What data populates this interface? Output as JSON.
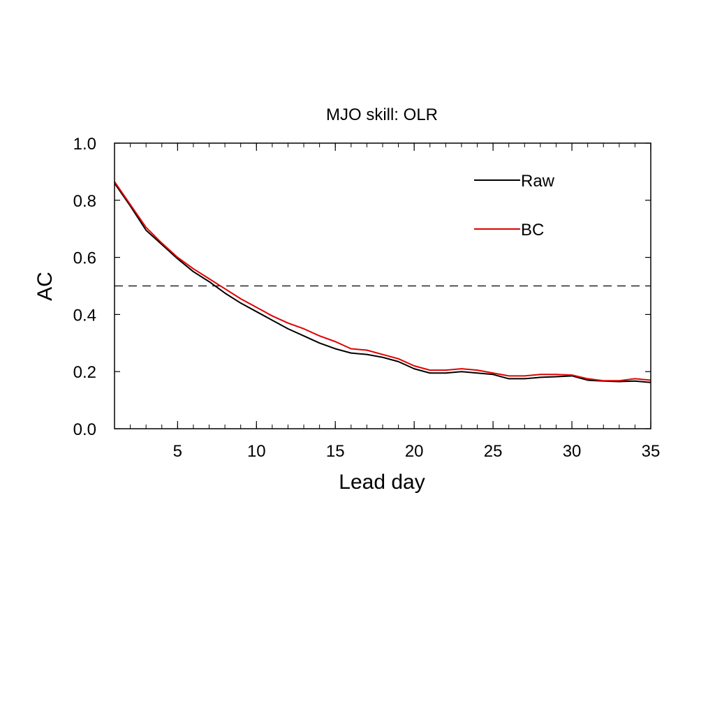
{
  "chart_data": {
    "type": "line",
    "title": "MJO skill: OLR",
    "xlabel": "Lead day",
    "ylabel": "AC",
    "xlim": [
      1,
      35
    ],
    "ylim": [
      0.0,
      1.0
    ],
    "xticks": [
      5,
      10,
      15,
      20,
      25,
      30,
      35
    ],
    "xtick_labels": [
      "5",
      "10",
      "15",
      "20",
      "25",
      "30",
      "35"
    ],
    "xminor_step": 1,
    "yticks": [
      0.0,
      0.2,
      0.4,
      0.6,
      0.8,
      1.0
    ],
    "ytick_labels": [
      "0.0",
      "0.2",
      "0.4",
      "0.6",
      "0.8",
      "1.0"
    ],
    "grid": false,
    "legend_position": "top-right",
    "reference_line": {
      "y": 0.5,
      "style": "dashed",
      "color": "#000000"
    },
    "x": [
      1,
      2,
      3,
      4,
      5,
      6,
      7,
      8,
      9,
      10,
      11,
      12,
      13,
      14,
      15,
      16,
      17,
      18,
      19,
      20,
      21,
      22,
      23,
      24,
      25,
      26,
      27,
      28,
      29,
      30,
      31,
      32,
      33,
      34,
      35
    ],
    "series": [
      {
        "name": "Raw",
        "color": "#000000",
        "values": [
          0.86,
          0.78,
          0.695,
          0.645,
          0.595,
          0.55,
          0.515,
          0.475,
          0.44,
          0.41,
          0.38,
          0.35,
          0.325,
          0.3,
          0.28,
          0.265,
          0.26,
          0.25,
          0.235,
          0.21,
          0.195,
          0.195,
          0.2,
          0.195,
          0.19,
          0.175,
          0.175,
          0.18,
          0.182,
          0.185,
          0.17,
          0.167,
          0.165,
          0.167,
          0.162
        ]
      },
      {
        "name": "BC",
        "color": "#e00000",
        "values": [
          0.865,
          0.785,
          0.705,
          0.65,
          0.6,
          0.56,
          0.525,
          0.49,
          0.455,
          0.425,
          0.395,
          0.37,
          0.35,
          0.325,
          0.305,
          0.28,
          0.275,
          0.26,
          0.245,
          0.22,
          0.205,
          0.205,
          0.21,
          0.205,
          0.195,
          0.185,
          0.185,
          0.19,
          0.19,
          0.188,
          0.175,
          0.168,
          0.168,
          0.175,
          0.17
        ]
      }
    ]
  }
}
